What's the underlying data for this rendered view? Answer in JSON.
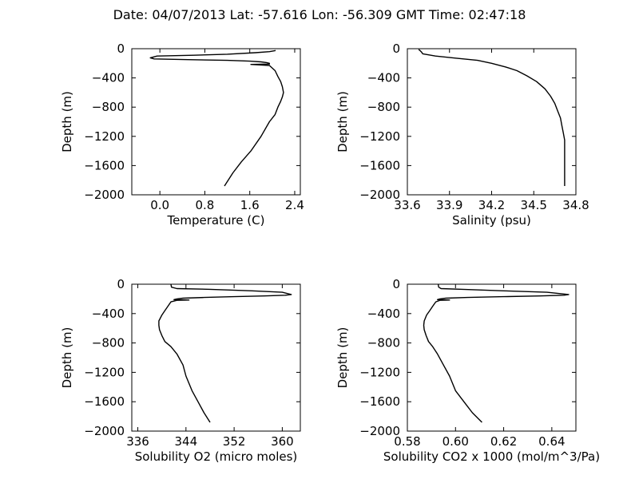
{
  "figure": {
    "title": "Date: 04/07/2013  Lat:  -57.616 Lon:  -56.309  GMT Time: 02:47:18"
  },
  "chart_data": [
    {
      "type": "line",
      "xlabel": "Temperature (C)",
      "ylabel": "Depth (m)",
      "xlim": [
        -0.5,
        2.5
      ],
      "ylim": [
        -2000,
        0
      ],
      "xticks": [
        0.0,
        0.8,
        1.6,
        2.4
      ],
      "xtick_labels": [
        "0.0",
        "0.8",
        "1.6",
        "2.4"
      ],
      "yticks": [
        0,
        -400,
        -800,
        -1200,
        -1600,
        -2000
      ],
      "ytick_labels": [
        "0",
        "−400",
        "−800",
        "−1200",
        "−1600",
        "−2000"
      ],
      "series": [
        {
          "x": [
            2.06,
            1.95,
            1.7,
            1.2,
            0.6,
            -0.05,
            -0.17,
            -0.1,
            0.5,
            1.2,
            1.6,
            1.8,
            1.9,
            1.95,
            1.95,
            1.62,
            1.95,
            2.05,
            2.1,
            2.15,
            2.18,
            2.2,
            2.18,
            2.15,
            2.1,
            2.05,
            1.95,
            1.8,
            1.62,
            1.45,
            1.3,
            1.15
          ],
          "y": [
            -25,
            -40,
            -55,
            -75,
            -90,
            -100,
            -125,
            -140,
            -150,
            -160,
            -170,
            -180,
            -190,
            -200,
            -210,
            -215,
            -230,
            -300,
            -380,
            -450,
            -520,
            -600,
            -660,
            -720,
            -800,
            -900,
            -1000,
            -1200,
            -1400,
            -1550,
            -1700,
            -1880
          ]
        }
      ]
    },
    {
      "type": "line",
      "xlabel": "Salinity (psu)",
      "ylabel": "Depth (m)",
      "xlim": [
        33.6,
        34.8
      ],
      "ylim": [
        -2000,
        0
      ],
      "xticks": [
        33.6,
        33.9,
        34.2,
        34.5,
        34.8
      ],
      "xtick_labels": [
        "33.6",
        "33.9",
        "34.2",
        "34.5",
        "34.8"
      ],
      "yticks": [
        0,
        -400,
        -800,
        -1200,
        -1600,
        -2000
      ],
      "ytick_labels": [
        "0",
        "−400",
        "−800",
        "−1200",
        "−1600",
        "−2000"
      ],
      "series": [
        {
          "x": [
            33.68,
            33.69,
            33.7,
            33.71,
            33.8,
            33.95,
            34.1,
            34.2,
            34.3,
            34.38,
            34.45,
            34.52,
            34.58,
            34.62,
            34.65,
            34.67,
            34.69,
            34.7,
            34.71,
            34.72,
            34.72,
            34.72,
            34.72,
            34.72,
            34.72
          ],
          "y": [
            -10,
            -25,
            -45,
            -70,
            -100,
            -130,
            -160,
            -200,
            -250,
            -300,
            -370,
            -450,
            -550,
            -650,
            -750,
            -850,
            -950,
            -1050,
            -1150,
            -1250,
            -1350,
            -1450,
            -1600,
            -1750,
            -1880
          ]
        }
      ]
    },
    {
      "type": "line",
      "xlabel": "Solubility O2 (micro moles)",
      "ylabel": "Depth (m)",
      "xlim": [
        335,
        363
      ],
      "ylim": [
        -2000,
        0
      ],
      "xticks": [
        336,
        344,
        352,
        360
      ],
      "xtick_labels": [
        "336",
        "344",
        "352",
        "360"
      ],
      "yticks": [
        0,
        -400,
        -800,
        -1200,
        -1600,
        -2000
      ],
      "ytick_labels": [
        "0",
        "−400",
        "−800",
        "−1200",
        "−1600",
        "−2000"
      ],
      "series": [
        {
          "x": [
            341.5,
            341.6,
            342.5,
            348.0,
            355.0,
            360.0,
            361.5,
            360.5,
            357.0,
            352.0,
            347.0,
            343.5,
            342.5,
            342.0,
            344.5,
            342.5,
            341.5,
            341.0,
            340.5,
            340.0,
            339.5,
            339.5,
            339.6,
            340.0,
            340.5,
            341.5,
            342.5,
            343.5,
            344.0,
            345.0,
            346.0,
            347.0,
            348.0
          ],
          "y": [
            0,
            -40,
            -60,
            -70,
            -90,
            -110,
            -140,
            -150,
            -160,
            -170,
            -180,
            -190,
            -200,
            -210,
            -215,
            -220,
            -240,
            -300,
            -360,
            -420,
            -500,
            -560,
            -620,
            -700,
            -780,
            -850,
            -950,
            -1100,
            -1250,
            -1450,
            -1600,
            -1750,
            -1880
          ]
        }
      ]
    },
    {
      "type": "line",
      "xlabel": "Solubility CO2 x 1000 (mol/m^3/Pa)",
      "ylabel": "Depth (m)",
      "xlim": [
        0.58,
        0.65
      ],
      "ylim": [
        -2000,
        0
      ],
      "xticks": [
        0.58,
        0.6,
        0.62,
        0.64
      ],
      "xtick_labels": [
        "0.58",
        "0.60",
        "0.62",
        "0.64"
      ],
      "yticks": [
        0,
        -400,
        -800,
        -1200,
        -1600,
        -2000
      ],
      "ytick_labels": [
        "0",
        "−400",
        "−800",
        "−1200",
        "−1600",
        "−2000"
      ],
      "series": [
        {
          "x": [
            0.5928,
            0.593,
            0.594,
            0.603,
            0.62,
            0.638,
            0.647,
            0.645,
            0.635,
            0.62,
            0.605,
            0.596,
            0.5935,
            0.5925,
            0.5975,
            0.5935,
            0.5918,
            0.5905,
            0.5893,
            0.588,
            0.587,
            0.5868,
            0.587,
            0.5878,
            0.5888,
            0.5905,
            0.5925,
            0.595,
            0.5975,
            0.6,
            0.6035,
            0.607,
            0.611
          ],
          "y": [
            0,
            -40,
            -60,
            -70,
            -90,
            -110,
            -140,
            -150,
            -160,
            -170,
            -180,
            -190,
            -200,
            -210,
            -215,
            -220,
            -240,
            -300,
            -360,
            -420,
            -500,
            -560,
            -620,
            -700,
            -780,
            -850,
            -950,
            -1100,
            -1250,
            -1450,
            -1600,
            -1750,
            -1880
          ]
        }
      ]
    }
  ]
}
